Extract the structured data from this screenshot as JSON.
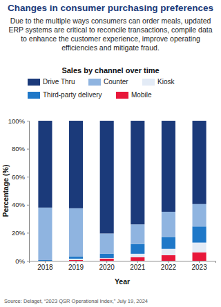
{
  "chart_data": {
    "type": "bar",
    "title": "Changes in consumer purchasing preferences",
    "subtitle": "Due to the multiple ways consumers can order meals, updated ERP systems are critical to reconcile transactions, compile data to enhance the customer experience, improve operating efficiencies and mitigate fraud.",
    "plot_title": "Sales by channel over time",
    "source": "Source: Delaget, “2023 QSR Operational Index,” July 19, 2024",
    "x_label": "Year",
    "y_label": "Percentage (%)",
    "categories": [
      "2018",
      "2019",
      "2020",
      "2021",
      "2022",
      "2023"
    ],
    "series": [
      {
        "name": "Mobile",
        "color": "#e8173a",
        "values": [
          0,
          0.5,
          1.5,
          2.5,
          4,
          6
        ]
      },
      {
        "name": "Kiosk",
        "color": "#e3ebf6",
        "values": [
          0,
          1,
          0.5,
          2.5,
          4.5,
          7
        ]
      },
      {
        "name": "Third-party delivery",
        "color": "#1f78c8",
        "values": [
          0.5,
          1.5,
          3,
          7,
          8.5,
          11.5
        ]
      },
      {
        "name": "Counter",
        "color": "#8fb4e0",
        "values": [
          37.5,
          34.5,
          14.5,
          14,
          18,
          16
        ]
      },
      {
        "name": "Drive Thru",
        "color": "#1b3a7a",
        "values": [
          62,
          62.5,
          80.5,
          74,
          65,
          59.5
        ]
      }
    ],
    "stacked": true,
    "ylim": [
      0,
      100
    ],
    "yticks": [
      {
        "value": 0,
        "label": "0%"
      },
      {
        "value": 20,
        "label": "20%"
      },
      {
        "value": 40,
        "label": "40%"
      },
      {
        "value": 60,
        "label": "60%"
      },
      {
        "value": 80,
        "label": "80%"
      },
      {
        "value": 100,
        "label": "100%"
      }
    ],
    "grid": false,
    "legend": "top"
  }
}
